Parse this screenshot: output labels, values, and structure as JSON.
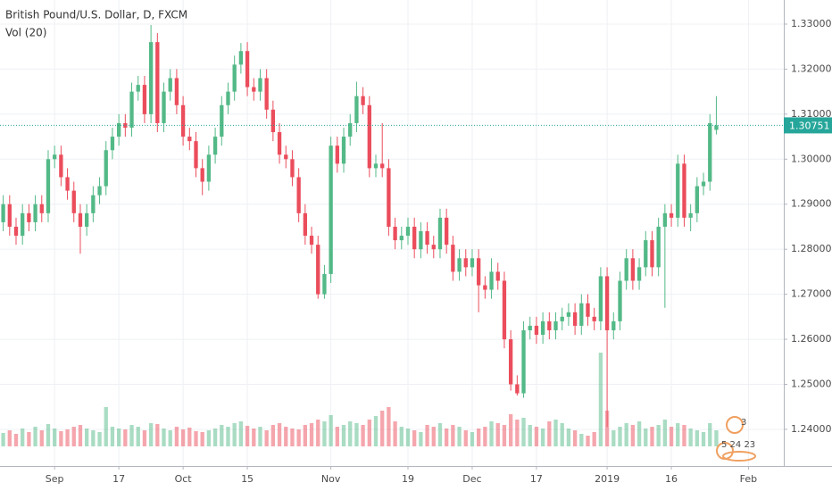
{
  "chart_data": {
    "type": "candlestick",
    "title": "British Pound/U.S. Dollar, D, FXCM",
    "up_color": "#53b987",
    "down_color": "#eb4d5c",
    "grid": true,
    "xlim": [
      -0.5,
      121.5
    ],
    "xticks": [
      {
        "value": 8,
        "label": "Sep"
      },
      {
        "value": 18,
        "label": "17"
      },
      {
        "value": 28,
        "label": "Oct"
      },
      {
        "value": 38,
        "label": "15"
      },
      {
        "value": 51,
        "label": "Nov"
      },
      {
        "value": 63,
        "label": "19"
      },
      {
        "value": 73,
        "label": "Dec"
      },
      {
        "value": 83,
        "label": "17"
      },
      {
        "value": 94,
        "label": "2019"
      },
      {
        "value": 104,
        "label": "16"
      },
      {
        "value": 116,
        "label": "Feb"
      }
    ],
    "ylim": [
      1.23186,
      1.33535
    ],
    "yticks": [
      {
        "value": 1.24,
        "label": "1.24000"
      },
      {
        "value": 1.25,
        "label": "1.25000"
      },
      {
        "value": 1.26,
        "label": "1.26000"
      },
      {
        "value": 1.27,
        "label": "1.27000"
      },
      {
        "value": 1.28,
        "label": "1.28000"
      },
      {
        "value": 1.29,
        "label": "1.29000"
      },
      {
        "value": 1.3,
        "label": "1.30000"
      },
      {
        "value": 1.31,
        "label": "1.31000"
      },
      {
        "value": 1.32,
        "label": "1.32000"
      },
      {
        "value": 1.33,
        "label": "1.33000"
      }
    ],
    "last_price": 1.30751,
    "last_price_color": "#26a69a",
    "open": [
      1.286,
      1.29,
      1.285,
      1.283,
      1.288,
      1.286,
      1.29,
      1.288,
      1.3,
      1.301,
      1.296,
      1.293,
      1.288,
      1.285,
      1.288,
      1.292,
      1.294,
      1.302,
      1.305,
      1.308,
      1.307,
      1.315,
      1.3165,
      1.31,
      1.326,
      1.308,
      1.315,
      1.318,
      1.312,
      1.305,
      1.304,
      1.298,
      1.295,
      1.301,
      1.305,
      1.312,
      1.315,
      1.321,
      1.324,
      1.316,
      1.315,
      1.318,
      1.311,
      1.306,
      1.301,
      1.3,
      1.296,
      1.288,
      1.283,
      1.281,
      1.27,
      1.2745,
      1.303,
      1.299,
      1.305,
      1.308,
      1.314,
      1.312,
      1.298,
      1.299,
      1.298,
      1.285,
      1.282,
      1.283,
      1.285,
      1.28,
      1.284,
      1.281,
      1.28,
      1.287,
      1.281,
      1.275,
      1.278,
      1.276,
      1.278,
      1.272,
      1.271,
      1.275,
      1.273,
      1.26,
      1.25,
      1.248,
      1.262,
      1.263,
      1.261,
      1.264,
      1.262,
      1.264,
      1.265,
      1.266,
      1.263,
      1.268,
      1.265,
      1.264,
      1.274,
      1.262,
      1.264,
      1.273,
      1.278,
      1.273,
      1.276,
      1.282,
      1.276,
      1.285,
      1.288,
      1.287,
      1.299,
      1.287,
      1.288,
      1.294,
      1.295,
      1.3065
    ],
    "high": [
      1.292,
      1.292,
      1.287,
      1.29,
      1.29,
      1.292,
      1.292,
      1.302,
      1.303,
      1.303,
      1.298,
      1.295,
      1.29,
      1.29,
      1.294,
      1.296,
      1.304,
      1.307,
      1.31,
      1.31,
      1.317,
      1.3185,
      1.3185,
      1.3298,
      1.328,
      1.317,
      1.32,
      1.32,
      1.314,
      1.307,
      1.306,
      1.3,
      1.303,
      1.307,
      1.314,
      1.317,
      1.323,
      1.3258,
      1.326,
      1.318,
      1.32,
      1.32,
      1.313,
      1.308,
      1.303,
      1.302,
      1.298,
      1.29,
      1.285,
      1.283,
      1.2765,
      1.305,
      1.305,
      1.307,
      1.31,
      1.3172,
      1.316,
      1.314,
      1.301,
      1.308,
      1.3,
      1.287,
      1.285,
      1.287,
      1.287,
      1.286,
      1.286,
      1.283,
      1.289,
      1.289,
      1.283,
      1.28,
      1.28,
      1.28,
      1.28,
      1.274,
      1.278,
      1.277,
      1.275,
      1.262,
      1.252,
      1.264,
      1.265,
      1.265,
      1.266,
      1.266,
      1.266,
      1.267,
      1.268,
      1.268,
      1.27,
      1.27,
      1.267,
      1.276,
      1.276,
      1.266,
      1.275,
      1.28,
      1.28,
      1.278,
      1.284,
      1.284,
      1.287,
      1.29,
      1.29,
      1.301,
      1.301,
      1.29,
      1.296,
      1.297,
      1.31,
      1.314
    ],
    "low": [
      1.284,
      1.283,
      1.281,
      1.281,
      1.284,
      1.284,
      1.286,
      1.286,
      1.298,
      1.294,
      1.291,
      1.286,
      1.279,
      1.283,
      1.286,
      1.29,
      1.292,
      1.3,
      1.303,
      1.305,
      1.305,
      1.313,
      1.308,
      1.308,
      1.306,
      1.306,
      1.313,
      1.31,
      1.303,
      1.302,
      1.296,
      1.292,
      1.293,
      1.299,
      1.303,
      1.31,
      1.313,
      1.319,
      1.314,
      1.313,
      1.313,
      1.309,
      1.304,
      1.299,
      1.298,
      1.294,
      1.286,
      1.281,
      1.279,
      1.269,
      1.269,
      1.2725,
      1.297,
      1.297,
      1.303,
      1.306,
      1.31,
      1.296,
      1.296,
      1.296,
      1.283,
      1.28,
      1.28,
      1.281,
      1.278,
      1.278,
      1.279,
      1.278,
      1.278,
      1.279,
      1.273,
      1.273,
      1.274,
      1.274,
      1.266,
      1.269,
      1.269,
      1.271,
      1.258,
      1.2486,
      1.2475,
      1.247,
      1.26,
      1.259,
      1.259,
      1.26,
      1.26,
      1.262,
      1.263,
      1.261,
      1.261,
      1.263,
      1.262,
      1.262,
      1.2405,
      1.26,
      1.262,
      1.271,
      1.271,
      1.271,
      1.274,
      1.274,
      1.274,
      1.267,
      1.285,
      1.285,
      1.285,
      1.284,
      1.286,
      1.292,
      1.293,
      1.3055
    ],
    "close": [
      1.29,
      1.285,
      1.283,
      1.288,
      1.286,
      1.29,
      1.288,
      1.3,
      1.301,
      1.296,
      1.293,
      1.288,
      1.285,
      1.288,
      1.292,
      1.294,
      1.302,
      1.305,
      1.308,
      1.307,
      1.315,
      1.3165,
      1.31,
      1.326,
      1.308,
      1.315,
      1.318,
      1.312,
      1.305,
      1.304,
      1.298,
      1.295,
      1.301,
      1.305,
      1.312,
      1.315,
      1.321,
      1.324,
      1.316,
      1.315,
      1.318,
      1.311,
      1.306,
      1.301,
      1.3,
      1.296,
      1.288,
      1.283,
      1.281,
      1.27,
      1.2745,
      1.303,
      1.299,
      1.305,
      1.308,
      1.314,
      1.312,
      1.298,
      1.299,
      1.298,
      1.285,
      1.282,
      1.283,
      1.285,
      1.28,
      1.284,
      1.281,
      1.28,
      1.287,
      1.281,
      1.275,
      1.278,
      1.276,
      1.278,
      1.272,
      1.271,
      1.275,
      1.273,
      1.26,
      1.25,
      1.248,
      1.262,
      1.263,
      1.261,
      1.264,
      1.262,
      1.264,
      1.265,
      1.266,
      1.263,
      1.268,
      1.265,
      1.264,
      1.274,
      1.262,
      1.264,
      1.273,
      1.278,
      1.273,
      1.276,
      1.282,
      1.276,
      1.285,
      1.288,
      1.287,
      1.299,
      1.287,
      1.288,
      1.294,
      1.295,
      1.308,
      1.3075
    ],
    "volume": {
      "name": "Vol (20)",
      "ylim": [
        0,
        120
      ],
      "values": [
        15,
        18,
        14,
        20,
        16,
        22,
        18,
        25,
        20,
        17,
        19,
        22,
        24,
        20,
        18,
        16,
        44,
        22,
        20,
        19,
        24,
        22,
        18,
        26,
        25,
        20,
        18,
        22,
        19,
        21,
        17,
        16,
        18,
        20,
        24,
        22,
        26,
        28,
        23,
        20,
        22,
        18,
        24,
        26,
        22,
        20,
        19,
        24,
        26,
        30,
        28,
        35,
        22,
        24,
        28,
        26,
        24,
        30,
        34,
        40,
        44,
        28,
        22,
        20,
        18,
        16,
        24,
        22,
        26,
        20,
        24,
        22,
        18,
        16,
        20,
        22,
        28,
        26,
        24,
        36,
        30,
        32,
        24,
        22,
        20,
        28,
        30,
        26,
        20,
        18,
        14,
        12,
        16,
        105,
        40,
        18,
        22,
        26,
        24,
        28,
        20,
        22,
        24,
        30,
        22,
        26,
        24,
        20,
        18,
        16,
        26,
        18
      ]
    },
    "events": [
      "3",
      "5 24 23"
    ]
  }
}
